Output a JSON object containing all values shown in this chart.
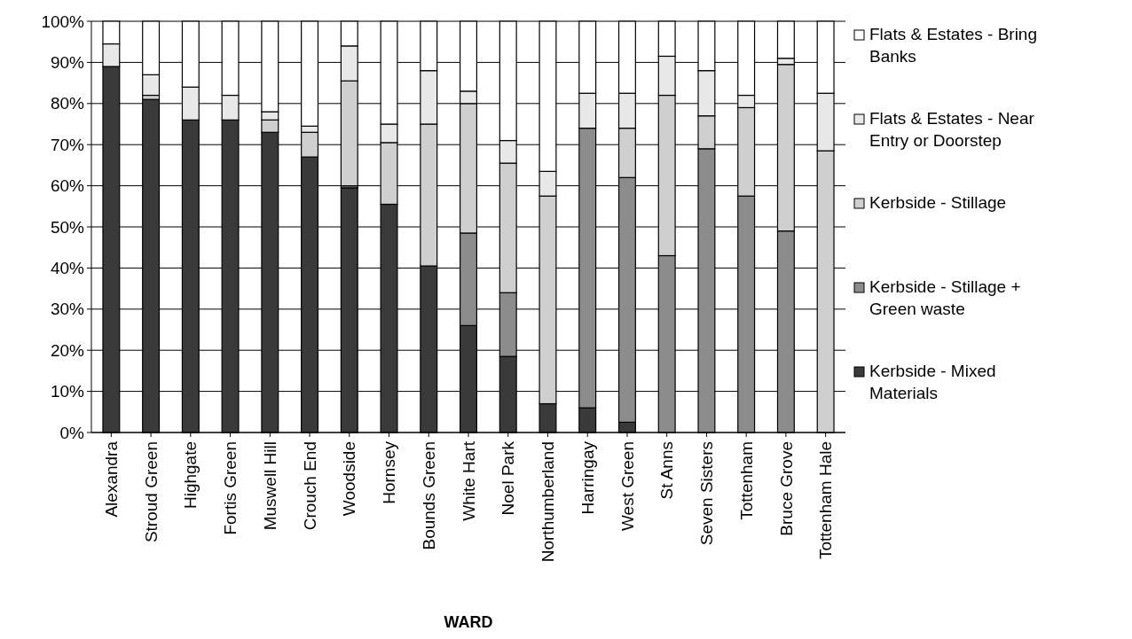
{
  "chart_data": {
    "type": "bar",
    "stacked": true,
    "xlabel": "WARD",
    "categories": [
      "Alexandra",
      "Stroud Green",
      "Highgate",
      "Fortis Green",
      "Muswell Hill",
      "Crouch End",
      "Woodside",
      "Hornsey",
      "Bounds Green",
      "White Hart",
      "Noel Park",
      "Northumberland",
      "Harringay",
      "West Green",
      "St Anns",
      "Seven Sisters",
      "Tottenham",
      "Bruce Grove",
      "Tottenham Hale"
    ],
    "series": [
      {
        "name": "Kerbside - Mixed Materials",
        "color": "#3a3a3a",
        "values": [
          89,
          81,
          76,
          76,
          73,
          67,
          59.5,
          55.5,
          40.5,
          26,
          18.5,
          7,
          6,
          2.5,
          null,
          0,
          0,
          0,
          0
        ]
      },
      {
        "name": "Kerbside - Stillage + Green waste",
        "color": "#8c8c8c",
        "values": [
          0,
          0,
          0,
          0,
          0,
          0,
          0.5,
          0,
          0,
          22.5,
          15.5,
          0,
          68,
          59.5,
          43,
          69,
          57.5,
          49,
          0
        ]
      },
      {
        "name": "Kerbside - Stillage",
        "color": "#cfcfcf",
        "values": [
          0,
          1,
          0,
          0,
          3,
          6,
          25.5,
          15,
          34.5,
          31.5,
          31.5,
          50.5,
          0,
          12,
          39,
          8,
          21.5,
          40.5,
          68.5
        ]
      },
      {
        "name": "Flats & Estates - Near Entry or Doorstep",
        "color": "#e8e8e8",
        "values": [
          5.5,
          5,
          8,
          6,
          2,
          1.5,
          8.5,
          4.5,
          13,
          3,
          5.5,
          6,
          8.5,
          8.5,
          9.5,
          11,
          3,
          1.5,
          14
        ]
      },
      {
        "name": "Flats & Estates - Bring Banks",
        "color": "#ffffff",
        "values": [
          5.5,
          13,
          16,
          18,
          22,
          25.5,
          6,
          25,
          12,
          17,
          29,
          36.5,
          17.5,
          17.5,
          8.5,
          12,
          18,
          9,
          17.5
        ]
      }
    ],
    "ylim": [
      0,
      100
    ],
    "yticks": [
      {
        "value": 0,
        "label": "0%"
      },
      {
        "value": 10,
        "label": "10%"
      },
      {
        "value": 20,
        "label": "20%"
      },
      {
        "value": 30,
        "label": "30%"
      },
      {
        "value": 40,
        "label": "40%"
      },
      {
        "value": 50,
        "label": "50%"
      },
      {
        "value": 60,
        "label": "60%"
      },
      {
        "value": 70,
        "label": "70%"
      },
      {
        "value": 80,
        "label": "80%"
      },
      {
        "value": 90,
        "label": "90%"
      },
      {
        "value": 100,
        "label": "100%"
      }
    ],
    "grid": "y",
    "legend": "right"
  }
}
